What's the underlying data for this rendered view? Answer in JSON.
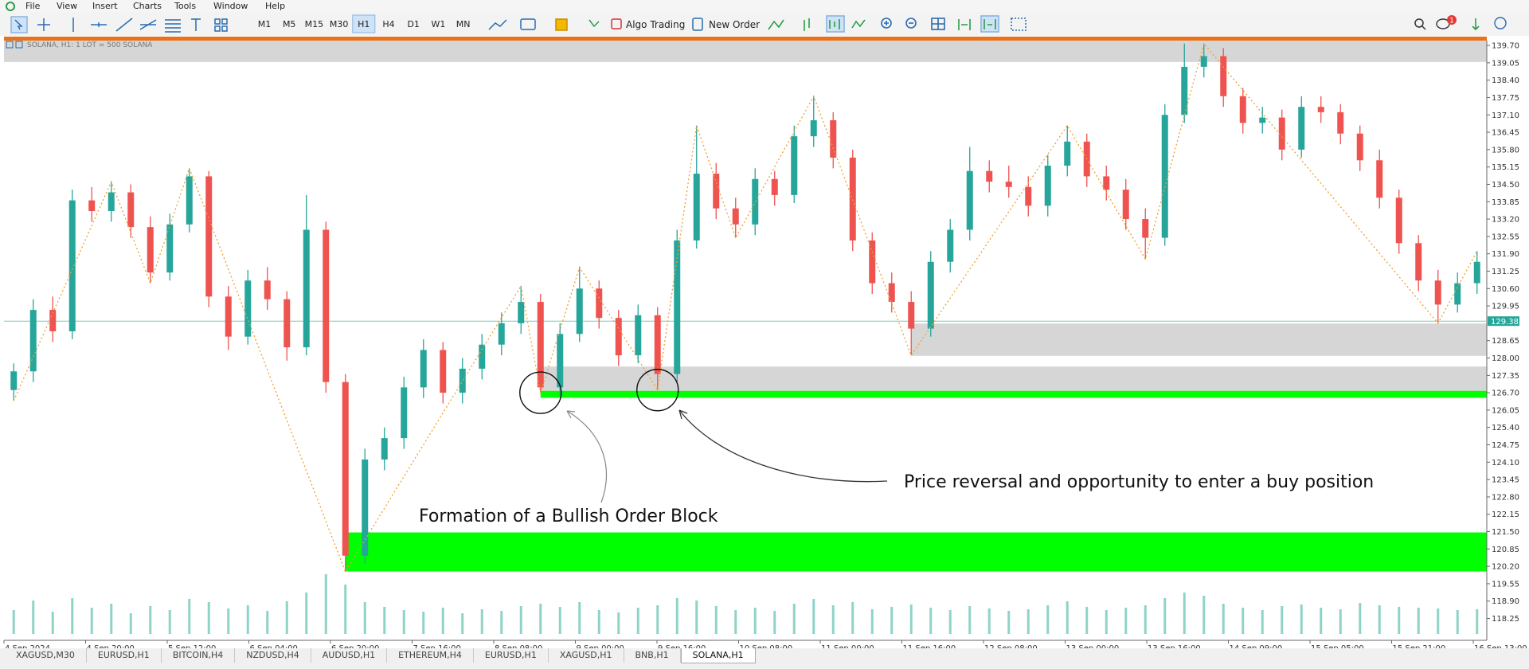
{
  "menu": [
    "File",
    "View",
    "Insert",
    "Charts",
    "Tools",
    "Window",
    "Help"
  ],
  "toolbar": {
    "timeframes": [
      "M1",
      "M5",
      "M15",
      "M30",
      "H1",
      "H4",
      "D1",
      "W1",
      "MN"
    ],
    "active_timeframe": "H1",
    "algo_trading": "Algo Trading",
    "new_order": "New Order",
    "notification_count": "1"
  },
  "chart": {
    "type": "candlestick",
    "title": "SOLANA, H1: 1 LOT = 500 SOLANA",
    "bull_color": "#26a69a",
    "bear_color": "#ef5350",
    "candles": [
      [
        126.8,
        127.8,
        126.4,
        127.5
      ],
      [
        127.5,
        130.2,
        127.1,
        129.8
      ],
      [
        129.8,
        130.3,
        128.6,
        129.0
      ],
      [
        129.0,
        134.3,
        128.7,
        133.9
      ],
      [
        133.9,
        134.4,
        133.1,
        133.5
      ],
      [
        133.5,
        134.6,
        133.1,
        134.2
      ],
      [
        134.2,
        134.5,
        132.5,
        132.9
      ],
      [
        132.9,
        133.3,
        130.8,
        131.2
      ],
      [
        131.2,
        133.4,
        130.9,
        133.0
      ],
      [
        133.0,
        135.1,
        132.7,
        134.8
      ],
      [
        134.8,
        135.0,
        129.9,
        130.3
      ],
      [
        130.3,
        130.7,
        128.3,
        128.8
      ],
      [
        128.8,
        131.3,
        128.5,
        130.9
      ],
      [
        130.9,
        131.4,
        129.8,
        130.2
      ],
      [
        130.2,
        130.5,
        127.9,
        128.4
      ],
      [
        128.4,
        134.1,
        128.1,
        132.8
      ],
      [
        132.8,
        133.1,
        126.7,
        127.1
      ],
      [
        127.1,
        127.4,
        120.0,
        120.6
      ],
      [
        120.6,
        124.6,
        120.3,
        124.2
      ],
      [
        124.2,
        125.4,
        123.8,
        125.0
      ],
      [
        125.0,
        127.3,
        124.6,
        126.9
      ],
      [
        126.9,
        128.7,
        126.5,
        128.3
      ],
      [
        128.3,
        128.6,
        126.3,
        126.7
      ],
      [
        126.7,
        128.0,
        126.3,
        127.6
      ],
      [
        127.6,
        128.9,
        127.2,
        128.5
      ],
      [
        128.5,
        129.7,
        128.1,
        129.3
      ],
      [
        129.3,
        130.7,
        128.9,
        130.1
      ],
      [
        130.1,
        130.4,
        126.7,
        126.9
      ],
      [
        126.9,
        129.3,
        126.6,
        128.9
      ],
      [
        128.9,
        131.4,
        128.6,
        130.6
      ],
      [
        130.6,
        130.9,
        129.1,
        129.5
      ],
      [
        129.5,
        129.8,
        127.7,
        128.1
      ],
      [
        128.1,
        130.0,
        127.8,
        129.6
      ],
      [
        129.6,
        129.9,
        126.8,
        127.4
      ],
      [
        127.4,
        132.8,
        127.1,
        132.4
      ],
      [
        132.4,
        136.7,
        132.1,
        134.9
      ],
      [
        134.9,
        135.3,
        133.2,
        133.6
      ],
      [
        133.6,
        134.0,
        132.5,
        133.0
      ],
      [
        133.0,
        135.1,
        132.6,
        134.7
      ],
      [
        134.7,
        135.0,
        133.7,
        134.1
      ],
      [
        134.1,
        136.7,
        133.8,
        136.3
      ],
      [
        136.3,
        137.8,
        135.9,
        136.9
      ],
      [
        136.9,
        137.2,
        135.1,
        135.5
      ],
      [
        135.5,
        135.8,
        132.0,
        132.4
      ],
      [
        132.4,
        132.7,
        130.4,
        130.8
      ],
      [
        130.8,
        131.2,
        129.7,
        130.1
      ],
      [
        130.1,
        130.5,
        128.1,
        129.1
      ],
      [
        129.1,
        132.0,
        128.8,
        131.6
      ],
      [
        131.6,
        133.2,
        131.2,
        132.8
      ],
      [
        132.8,
        135.9,
        132.4,
        135.0
      ],
      [
        135.0,
        135.4,
        134.2,
        134.6
      ],
      [
        134.6,
        135.2,
        134.0,
        134.4
      ],
      [
        134.4,
        134.8,
        133.3,
        133.7
      ],
      [
        133.7,
        135.6,
        133.3,
        135.2
      ],
      [
        135.2,
        136.7,
        134.8,
        136.1
      ],
      [
        136.1,
        136.4,
        134.4,
        134.8
      ],
      [
        134.8,
        135.2,
        133.9,
        134.3
      ],
      [
        134.3,
        134.7,
        132.8,
        133.2
      ],
      [
        133.2,
        133.6,
        131.7,
        132.5
      ],
      [
        132.5,
        137.5,
        132.2,
        137.1
      ],
      [
        137.1,
        139.77,
        136.8,
        138.9
      ],
      [
        138.9,
        139.77,
        138.5,
        139.3
      ],
      [
        139.3,
        139.6,
        137.4,
        137.8
      ],
      [
        137.8,
        138.1,
        136.4,
        136.8
      ],
      [
        136.8,
        137.4,
        136.4,
        137.0
      ],
      [
        137.0,
        137.3,
        135.4,
        135.8
      ],
      [
        135.8,
        137.8,
        135.5,
        137.4
      ],
      [
        137.4,
        137.8,
        136.8,
        137.2
      ],
      [
        137.2,
        137.5,
        136.0,
        136.4
      ],
      [
        136.4,
        136.7,
        135.0,
        135.4
      ],
      [
        135.4,
        135.8,
        133.6,
        134.0
      ],
      [
        134.0,
        134.3,
        131.9,
        132.3
      ],
      [
        132.3,
        132.6,
        130.5,
        130.9
      ],
      [
        130.9,
        131.3,
        129.3,
        130.0
      ],
      [
        130.0,
        131.2,
        129.7,
        130.8
      ],
      [
        130.8,
        132.0,
        130.4,
        131.6
      ]
    ],
    "volumes": [
      30,
      42,
      28,
      45,
      33,
      38,
      26,
      35,
      30,
      44,
      40,
      32,
      36,
      29,
      41,
      52,
      75,
      62,
      40,
      34,
      30,
      28,
      33,
      26,
      31,
      29,
      35,
      38,
      34,
      40,
      30,
      27,
      33,
      36,
      45,
      42,
      35,
      30,
      33,
      29,
      38,
      44,
      36,
      40,
      31,
      34,
      37,
      33,
      30,
      35,
      32,
      29,
      31,
      36,
      41,
      34,
      30,
      33,
      36,
      45,
      52,
      48,
      38,
      33,
      30,
      35,
      37,
      33,
      31,
      39,
      36,
      34,
      33,
      32,
      30,
      31
    ],
    "ylim": [
      117.67,
      139.88
    ],
    "yticks": [
      {
        "value": 139.7,
        "label": "139.70"
      },
      139.05,
      {
        "value": 138.4,
        "label": "138.40"
      },
      137.75,
      {
        "value": 137.1,
        "label": "137.10"
      },
      136.45,
      {
        "value": 135.8,
        "label": "135.80"
      },
      135.15,
      {
        "value": 134.5,
        "label": "134.50"
      },
      133.85,
      {
        "value": 133.2,
        "label": "133.20"
      },
      132.55,
      {
        "value": 131.9,
        "label": "131.90"
      },
      131.25,
      {
        "value": 130.6,
        "label": "130.60"
      },
      129.95,
      128.65,
      {
        "value": 128.0,
        "label": "128.00"
      },
      127.35,
      {
        "value": 126.7,
        "label": "126.70"
      },
      126.05,
      {
        "value": 125.4,
        "label": "125.40"
      },
      124.75,
      {
        "value": 124.1,
        "label": "124.10"
      },
      123.45,
      {
        "value": 122.8,
        "label": "122.80"
      },
      122.15,
      {
        "value": 121.5,
        "label": "121.50"
      },
      120.85,
      {
        "value": 120.2,
        "label": "120.20"
      },
      119.55,
      {
        "value": 118.9,
        "label": "118.90"
      },
      118.25
    ],
    "current_price": 129.38,
    "time_labels": [
      "4 Sep 2024",
      "4 Sep 20:00",
      "5 Sep 12:00",
      "6 Sep 04:00",
      "6 Sep 20:00",
      "7 Sep 16:00",
      "8 Sep 08:00",
      "9 Sep 00:00",
      "9 Sep 16:00",
      "10 Sep 08:00",
      "11 Sep 00:00",
      "11 Sep 16:00",
      "12 Sep 08:00",
      "13 Sep 00:00",
      "13 Sep 16:00",
      "14 Sep 09:00",
      "15 Sep 05:00",
      "15 Sep 21:00",
      "16 Sep 13:00"
    ],
    "zones": [
      {
        "top": 139.88,
        "bottom": 139.08,
        "color": "#d6d6d6"
      },
      {
        "top": 129.29,
        "bottom": 128.08,
        "color": "#d6d6d6"
      },
      {
        "top": 127.68,
        "bottom": 126.77,
        "color": "#d6d6d6"
      },
      {
        "top": 126.77,
        "bottom": 126.51,
        "color": "#00ff00"
      },
      {
        "top": 121.47,
        "bottom": 120.01,
        "color": "#00ff00"
      }
    ],
    "annotations": [
      "Formation of a Bullish Order Block",
      "Price reversal and opportunity to enter a buy position"
    ]
  },
  "tabs": [
    "XAGUSD,M30",
    "EURUSD,H1",
    "BITCOIN,H4",
    "NZDUSD,H4",
    "AUDUSD,H1",
    "ETHEREUM,H4",
    "EURUSD,H1",
    "XAGUSD,H1",
    "BNB,H1",
    "SOLANA,H1"
  ],
  "active_tab": "SOLANA,H1"
}
